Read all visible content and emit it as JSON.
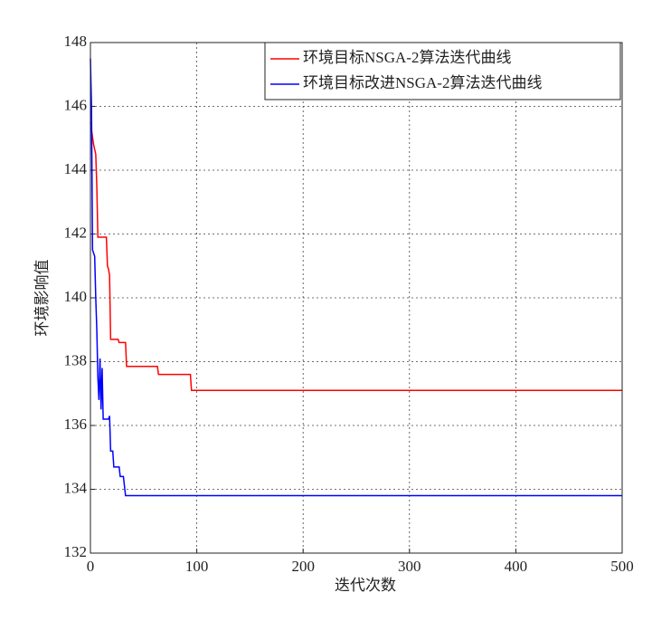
{
  "chart_data": {
    "type": "line",
    "x_label": "迭代次数",
    "y_label": "环境影响值",
    "xlim": [
      0,
      500
    ],
    "xticks": [
      0,
      100,
      200,
      300,
      400,
      500
    ],
    "ylim": [
      132,
      148
    ],
    "yticks": [
      132,
      134,
      136,
      138,
      140,
      142,
      144,
      146,
      148
    ],
    "grid": true,
    "legend": "upper right",
    "series": [
      {
        "name": "环境目标NSGA-2算法迭代曲线",
        "color": "#ff0000",
        "x": [
          0,
          3,
          5,
          6,
          7,
          15,
          16,
          17,
          18,
          19,
          26,
          27,
          33,
          34,
          63,
          64,
          94,
          95,
          500
        ],
        "values": [
          145.5,
          144.8,
          144.5,
          143.5,
          141.9,
          141.9,
          141.0,
          140.9,
          140.7,
          138.7,
          138.7,
          138.6,
          138.6,
          137.85,
          137.85,
          137.6,
          137.6,
          137.1,
          137.1
        ]
      },
      {
        "name": "环境目标改进NSGA-2算法迭代曲线",
        "color": "#0000ff",
        "x": [
          0,
          1,
          2,
          4,
          5,
          6,
          7,
          8,
          9,
          10,
          11,
          12,
          17,
          18,
          19,
          21,
          22,
          27,
          28,
          31,
          32,
          33,
          500
        ],
        "values": [
          147.5,
          146,
          141.5,
          141.3,
          140,
          139,
          137.5,
          136.8,
          138.1,
          136.5,
          137.8,
          136.2,
          136.2,
          136.3,
          135.2,
          135.2,
          134.7,
          134.7,
          134.4,
          134.4,
          134.1,
          133.8,
          133.8
        ]
      }
    ]
  }
}
